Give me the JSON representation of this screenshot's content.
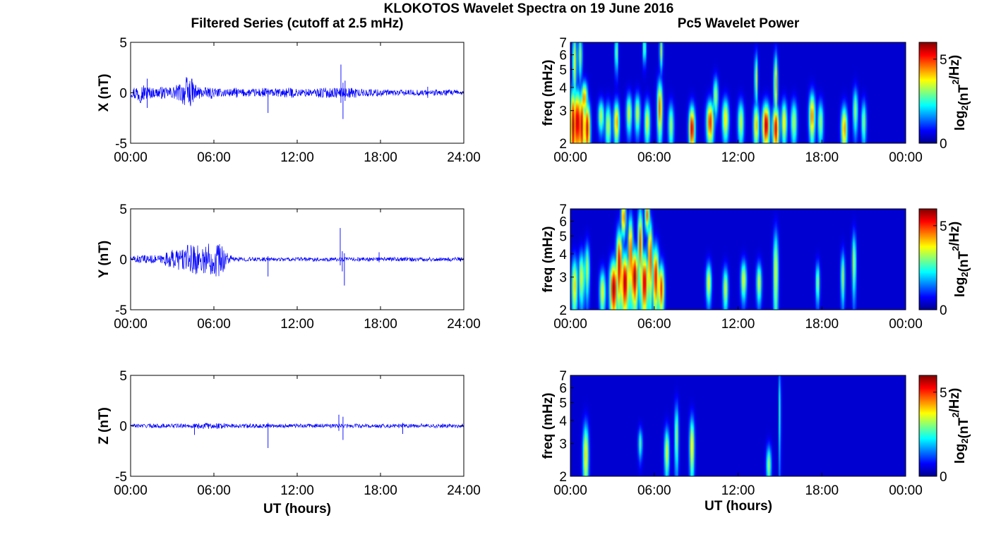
{
  "figure": {
    "title": "KLOKOTOS Wavelet Spectra on 19 June 2016",
    "left_title": "Filtered Series (cutoff at 2.5 mHz)",
    "right_title": "Pc5 Wavelet Power",
    "xlabel": "UT (hours)"
  },
  "colors": {
    "trace": "#0000ff",
    "axis": "#000000",
    "colormap": "jet",
    "background": "#00008f"
  },
  "chart_data": [
    {
      "type": "line",
      "component": "X",
      "ylabel": "X (nT)",
      "xlim": [
        0,
        24
      ],
      "ylim": [
        -5,
        5
      ],
      "xtick_labels": [
        "00:00",
        "06:00",
        "12:00",
        "18:00",
        "24:00"
      ],
      "ytick_labels": [
        "-5",
        "0",
        "5"
      ],
      "series": [
        {
          "values": [
            0.5,
            0.8,
            1.0,
            0.9,
            0.7,
            0.6,
            0.5,
            0.5,
            0.6,
            0.6,
            0.5,
            0.6,
            0.7,
            0.8,
            1.0,
            1.3,
            1.6,
            1.4,
            1.0,
            0.7,
            0.5,
            0.5,
            0.5,
            0.6,
            0.5,
            0.4,
            0.4,
            0.5,
            0.4,
            0.4,
            0.5,
            0.4,
            0.4,
            0.4,
            0.4,
            0.4,
            0.4,
            0.5,
            0.5,
            0.5,
            0.4,
            0.4,
            0.4,
            0.5,
            0.5,
            0.5,
            0.5,
            0.4,
            0.4,
            0.4,
            0.4,
            0.4,
            0.4,
            0.5,
            0.5,
            0.5,
            0.5,
            0.5,
            0.5,
            0.5,
            0.5,
            0.5,
            0.5,
            0.5,
            0.5,
            0.4,
            0.4,
            0.4,
            0.4,
            0.4,
            0.4,
            0.4,
            0.4,
            0.3,
            0.3,
            0.3,
            0.3,
            0.3,
            0.3,
            0.3,
            0.3,
            0.3,
            0.3,
            0.3,
            0.3,
            0.3,
            0.3,
            0.3,
            0.3,
            0.3,
            0.3,
            0.3,
            0.3,
            0.3,
            0.2,
            0.2
          ],
          "color": "#0000ff"
        }
      ],
      "spikes": [
        {
          "x": 1.2,
          "min": -1.5,
          "max": 1.4
        },
        {
          "x": 9.9,
          "min": -2.0,
          "max": 0.4
        },
        {
          "x": 15.15,
          "min": -1.0,
          "max": 2.8
        },
        {
          "x": 15.3,
          "min": -2.6,
          "max": 1.0
        },
        {
          "x": 15.45,
          "min": -0.8,
          "max": 1.2
        },
        {
          "x": 21.4,
          "min": -0.5,
          "max": 0.6
        }
      ]
    },
    {
      "type": "line",
      "component": "Y",
      "ylabel": "Y (nT)",
      "xlim": [
        0,
        24
      ],
      "ylim": [
        -5,
        5
      ],
      "xtick_labels": [
        "00:00",
        "06:00",
        "12:00",
        "18:00",
        "24:00"
      ],
      "ytick_labels": [
        "-5",
        "0",
        "5"
      ],
      "series": [
        {
          "values": [
            0.3,
            0.4,
            0.4,
            0.4,
            0.4,
            0.4,
            0.4,
            0.4,
            0.4,
            0.5,
            0.7,
            0.8,
            1.0,
            1.1,
            1.2,
            1.3,
            1.4,
            1.5,
            1.5,
            1.4,
            1.5,
            1.6,
            1.7,
            1.6,
            1.7,
            1.8,
            1.4,
            1.0,
            0.5,
            0.3,
            0.2,
            0.2,
            0.2,
            0.2,
            0.2,
            0.2,
            0.2,
            0.2,
            0.2,
            0.2,
            0.2,
            0.2,
            0.2,
            0.2,
            0.2,
            0.2,
            0.2,
            0.2,
            0.2,
            0.2,
            0.2,
            0.2,
            0.2,
            0.2,
            0.2,
            0.2,
            0.2,
            0.2,
            0.2,
            0.2,
            0.2,
            0.2,
            0.2,
            0.2,
            0.2,
            0.2,
            0.2,
            0.2,
            0.2,
            0.2,
            0.2,
            0.2,
            0.2,
            0.2,
            0.2,
            0.2,
            0.2,
            0.2,
            0.2,
            0.2,
            0.2,
            0.2,
            0.2,
            0.2,
            0.2,
            0.2,
            0.2,
            0.2,
            0.2,
            0.2,
            0.2,
            0.2,
            0.2,
            0.2,
            0.2,
            0.2
          ],
          "color": "#0000ff"
        }
      ],
      "spikes": [
        {
          "x": 9.9,
          "min": -1.7,
          "max": 0.3
        },
        {
          "x": 15.1,
          "min": -0.6,
          "max": 3.1
        },
        {
          "x": 15.25,
          "min": -1.2,
          "max": 0.8
        },
        {
          "x": 15.4,
          "min": -2.6,
          "max": 0.6
        },
        {
          "x": 17.9,
          "min": -0.3,
          "max": 0.7
        }
      ]
    },
    {
      "type": "line",
      "component": "Z",
      "ylabel": "Z (nT)",
      "xlim": [
        0,
        24
      ],
      "ylim": [
        -5,
        5
      ],
      "xtick_labels": [
        "00:00",
        "06:00",
        "12:00",
        "18:00",
        "24:00"
      ],
      "ytick_labels": [
        "-5",
        "0",
        "5"
      ],
      "series": [
        {
          "values": [
            0.2,
            0.2,
            0.2,
            0.2,
            0.2,
            0.2,
            0.2,
            0.2,
            0.2,
            0.2,
            0.2,
            0.2,
            0.2,
            0.2,
            0.2,
            0.2,
            0.2,
            0.2,
            0.2,
            0.3,
            0.3,
            0.3,
            0.3,
            0.3,
            0.3,
            0.3,
            0.3,
            0.2,
            0.2,
            0.2,
            0.2,
            0.2,
            0.2,
            0.2,
            0.2,
            0.2,
            0.2,
            0.2,
            0.2,
            0.2,
            0.2,
            0.2,
            0.2,
            0.2,
            0.2,
            0.2,
            0.2,
            0.2,
            0.2,
            0.2,
            0.2,
            0.2,
            0.2,
            0.2,
            0.2,
            0.2,
            0.2,
            0.2,
            0.2,
            0.2,
            0.2,
            0.2,
            0.2,
            0.2,
            0.2,
            0.2,
            0.2,
            0.2,
            0.2,
            0.2,
            0.2,
            0.2,
            0.2,
            0.2,
            0.2,
            0.2,
            0.2,
            0.2,
            0.2,
            0.2,
            0.2,
            0.2,
            0.2,
            0.2,
            0.2,
            0.2,
            0.2,
            0.2,
            0.2,
            0.2,
            0.2,
            0.2,
            0.2,
            0.2,
            0.2,
            0.2
          ],
          "color": "#0000ff"
        }
      ],
      "spikes": [
        {
          "x": 4.6,
          "min": -0.9,
          "max": 0.2
        },
        {
          "x": 9.9,
          "min": -2.2,
          "max": 0.3
        },
        {
          "x": 15.0,
          "min": -0.5,
          "max": 1.1
        },
        {
          "x": 15.3,
          "min": -1.4,
          "max": 0.9
        },
        {
          "x": 19.6,
          "min": -0.8,
          "max": 0.3
        }
      ]
    },
    {
      "type": "heatmap",
      "component": "X",
      "ylabel": "freq (mHz)",
      "xlim": [
        0,
        24
      ],
      "ylim": [
        2,
        7
      ],
      "yscale": "log",
      "xtick_labels": [
        "00:00",
        "06:00",
        "12:00",
        "18:00",
        "00:00"
      ],
      "ytick_labels": [
        "2",
        "3",
        "4",
        "5",
        "6",
        "7"
      ],
      "colorbar": {
        "label": "log₂(nT²/Hz)",
        "range": [
          0,
          6
        ],
        "tick_labels": [
          "0",
          "5"
        ]
      },
      "blobs": [
        {
          "t": 0.2,
          "f": 2.5,
          "amp": 5.8,
          "dt": 0.15,
          "df": 0.9
        },
        {
          "t": 0.5,
          "f": 2.6,
          "amp": 5.7,
          "dt": 0.18,
          "df": 0.8
        },
        {
          "t": 0.8,
          "f": 2.5,
          "amp": 5.6,
          "dt": 0.16,
          "df": 0.8
        },
        {
          "t": 1.0,
          "f": 3.5,
          "amp": 4.5,
          "dt": 0.15,
          "df": 0.5
        },
        {
          "t": 1.2,
          "f": 2.4,
          "amp": 5.5,
          "dt": 0.15,
          "df": 0.6
        },
        {
          "t": 0.3,
          "f": 5.5,
          "amp": 3.5,
          "dt": 0.1,
          "df": 1.6
        },
        {
          "t": 0.7,
          "f": 6.0,
          "amp": 3.0,
          "dt": 0.1,
          "df": 1.2
        },
        {
          "t": 2.2,
          "f": 2.8,
          "amp": 3.2,
          "dt": 0.15,
          "df": 0.4
        },
        {
          "t": 2.7,
          "f": 2.5,
          "amp": 3.3,
          "dt": 0.15,
          "df": 0.5
        },
        {
          "t": 3.3,
          "f": 2.6,
          "amp": 4.3,
          "dt": 0.14,
          "df": 0.5
        },
        {
          "t": 3.3,
          "f": 6.2,
          "amp": 3.0,
          "dt": 0.08,
          "df": 1.0
        },
        {
          "t": 4.2,
          "f": 2.9,
          "amp": 3.4,
          "dt": 0.14,
          "df": 0.5
        },
        {
          "t": 4.8,
          "f": 2.9,
          "amp": 3.3,
          "dt": 0.14,
          "df": 0.5
        },
        {
          "t": 5.5,
          "f": 2.6,
          "amp": 3.5,
          "dt": 0.14,
          "df": 0.5
        },
        {
          "t": 5.3,
          "f": 6.5,
          "amp": 3.0,
          "dt": 0.08,
          "df": 0.8
        },
        {
          "t": 6.4,
          "f": 3.1,
          "amp": 4.6,
          "dt": 0.13,
          "df": 0.8
        },
        {
          "t": 6.5,
          "f": 6.3,
          "amp": 3.1,
          "dt": 0.08,
          "df": 1.0
        },
        {
          "t": 7.2,
          "f": 2.5,
          "amp": 3.0,
          "dt": 0.14,
          "df": 0.5
        },
        {
          "t": 8.7,
          "f": 2.4,
          "amp": 5.5,
          "dt": 0.15,
          "df": 0.5
        },
        {
          "t": 10.0,
          "f": 2.6,
          "amp": 5.0,
          "dt": 0.18,
          "df": 0.5
        },
        {
          "t": 10.4,
          "f": 3.6,
          "amp": 3.2,
          "dt": 0.12,
          "df": 0.6
        },
        {
          "t": 11.1,
          "f": 2.7,
          "amp": 3.8,
          "dt": 0.16,
          "df": 0.5
        },
        {
          "t": 12.2,
          "f": 2.6,
          "amp": 3.3,
          "dt": 0.15,
          "df": 0.5
        },
        {
          "t": 13.3,
          "f": 2.5,
          "amp": 4.0,
          "dt": 0.14,
          "df": 0.5
        },
        {
          "t": 13.3,
          "f": 4.5,
          "amp": 3.3,
          "dt": 0.08,
          "df": 1.0
        },
        {
          "t": 14.0,
          "f": 2.5,
          "amp": 5.7,
          "dt": 0.18,
          "df": 0.5
        },
        {
          "t": 14.7,
          "f": 2.4,
          "amp": 5.5,
          "dt": 0.16,
          "df": 0.5
        },
        {
          "t": 14.7,
          "f": 4.2,
          "amp": 4.0,
          "dt": 0.09,
          "df": 1.2
        },
        {
          "t": 15.3,
          "f": 2.6,
          "amp": 3.8,
          "dt": 0.14,
          "df": 0.5
        },
        {
          "t": 16.0,
          "f": 2.6,
          "amp": 3.2,
          "dt": 0.15,
          "df": 0.5
        },
        {
          "t": 17.3,
          "f": 2.8,
          "amp": 4.5,
          "dt": 0.15,
          "df": 0.6
        },
        {
          "t": 17.9,
          "f": 2.6,
          "amp": 3.0,
          "dt": 0.14,
          "df": 0.5
        },
        {
          "t": 19.6,
          "f": 2.4,
          "amp": 4.3,
          "dt": 0.15,
          "df": 0.5
        },
        {
          "t": 20.4,
          "f": 3.0,
          "amp": 3.0,
          "dt": 0.12,
          "df": 0.6
        },
        {
          "t": 21.0,
          "f": 2.6,
          "amp": 2.9,
          "dt": 0.12,
          "df": 0.5
        }
      ]
    },
    {
      "type": "heatmap",
      "component": "Y",
      "ylabel": "freq (mHz)",
      "xlim": [
        0,
        24
      ],
      "ylim": [
        2,
        7
      ],
      "yscale": "log",
      "xtick_labels": [
        "00:00",
        "06:00",
        "12:00",
        "18:00",
        "00:00"
      ],
      "ytick_labels": [
        "2",
        "3",
        "4",
        "5",
        "6",
        "7"
      ],
      "colorbar": {
        "label": "log₂(nT²/Hz)",
        "range": [
          0,
          6
        ],
        "tick_labels": [
          "0",
          "5"
        ]
      },
      "blobs": [
        {
          "t": 0.3,
          "f": 2.7,
          "amp": 3.8,
          "dt": 0.15,
          "df": 0.7
        },
        {
          "t": 0.8,
          "f": 3.0,
          "amp": 3.5,
          "dt": 0.15,
          "df": 0.7
        },
        {
          "t": 1.2,
          "f": 3.3,
          "amp": 3.2,
          "dt": 0.12,
          "df": 0.8
        },
        {
          "t": 2.3,
          "f": 2.5,
          "amp": 3.5,
          "dt": 0.15,
          "df": 0.5
        },
        {
          "t": 3.1,
          "f": 2.6,
          "amp": 5.8,
          "dt": 0.2,
          "df": 0.7
        },
        {
          "t": 3.5,
          "f": 3.5,
          "amp": 5.5,
          "dt": 0.15,
          "df": 1.2
        },
        {
          "t": 3.9,
          "f": 2.8,
          "amp": 5.7,
          "dt": 0.2,
          "df": 0.8
        },
        {
          "t": 4.3,
          "f": 4.0,
          "amp": 5.0,
          "dt": 0.12,
          "df": 1.5
        },
        {
          "t": 4.6,
          "f": 3.0,
          "amp": 5.8,
          "dt": 0.18,
          "df": 0.8
        },
        {
          "t": 5.0,
          "f": 4.5,
          "amp": 4.8,
          "dt": 0.12,
          "df": 1.6
        },
        {
          "t": 5.3,
          "f": 2.8,
          "amp": 5.6,
          "dt": 0.18,
          "df": 0.8
        },
        {
          "t": 5.7,
          "f": 3.8,
          "amp": 5.0,
          "dt": 0.12,
          "df": 1.4
        },
        {
          "t": 6.1,
          "f": 3.0,
          "amp": 5.3,
          "dt": 0.16,
          "df": 0.9
        },
        {
          "t": 6.5,
          "f": 2.6,
          "amp": 5.0,
          "dt": 0.15,
          "df": 0.6
        },
        {
          "t": 3.8,
          "f": 6.3,
          "amp": 4.6,
          "dt": 0.12,
          "df": 1.0
        },
        {
          "t": 5.5,
          "f": 6.5,
          "amp": 4.5,
          "dt": 0.12,
          "df": 0.9
        },
        {
          "t": 9.9,
          "f": 2.8,
          "amp": 3.6,
          "dt": 0.13,
          "df": 0.5
        },
        {
          "t": 11.1,
          "f": 2.6,
          "amp": 3.3,
          "dt": 0.13,
          "df": 0.5
        },
        {
          "t": 12.4,
          "f": 2.9,
          "amp": 3.5,
          "dt": 0.14,
          "df": 0.5
        },
        {
          "t": 13.5,
          "f": 2.8,
          "amp": 3.3,
          "dt": 0.13,
          "df": 0.5
        },
        {
          "t": 14.7,
          "f": 3.2,
          "amp": 3.6,
          "dt": 0.12,
          "df": 1.3
        },
        {
          "t": 17.7,
          "f": 2.8,
          "amp": 3.0,
          "dt": 0.1,
          "df": 0.5
        },
        {
          "t": 19.5,
          "f": 3.0,
          "amp": 3.0,
          "dt": 0.1,
          "df": 0.7
        },
        {
          "t": 20.3,
          "f": 3.6,
          "amp": 3.2,
          "dt": 0.1,
          "df": 1.0
        }
      ]
    },
    {
      "type": "heatmap",
      "component": "Z",
      "ylabel": "freq (mHz)",
      "xlim": [
        0,
        24
      ],
      "ylim": [
        2,
        7
      ],
      "yscale": "log",
      "xtick_labels": [
        "00:00",
        "06:00",
        "12:00",
        "18:00",
        "00:00"
      ],
      "ytick_labels": [
        "2",
        "3",
        "4",
        "5",
        "6",
        "7"
      ],
      "colorbar": {
        "label": "log₂(nT²/Hz)",
        "range": [
          0,
          6
        ],
        "tick_labels": [
          "0",
          "5"
        ]
      },
      "blobs": [
        {
          "t": 1.1,
          "f": 2.6,
          "amp": 3.8,
          "dt": 0.14,
          "df": 0.8
        },
        {
          "t": 5.0,
          "f": 3.0,
          "amp": 2.5,
          "dt": 0.1,
          "df": 0.4
        },
        {
          "t": 6.9,
          "f": 2.7,
          "amp": 3.5,
          "dt": 0.12,
          "df": 0.6
        },
        {
          "t": 7.6,
          "f": 3.3,
          "amp": 3.0,
          "dt": 0.1,
          "df": 1.0
        },
        {
          "t": 8.7,
          "f": 2.9,
          "amp": 3.8,
          "dt": 0.12,
          "df": 0.8
        },
        {
          "t": 14.2,
          "f": 2.3,
          "amp": 3.0,
          "dt": 0.12,
          "df": 0.4
        },
        {
          "t": 15.0,
          "f": 4.5,
          "amp": 2.6,
          "dt": 0.05,
          "df": 2.0
        }
      ]
    }
  ]
}
